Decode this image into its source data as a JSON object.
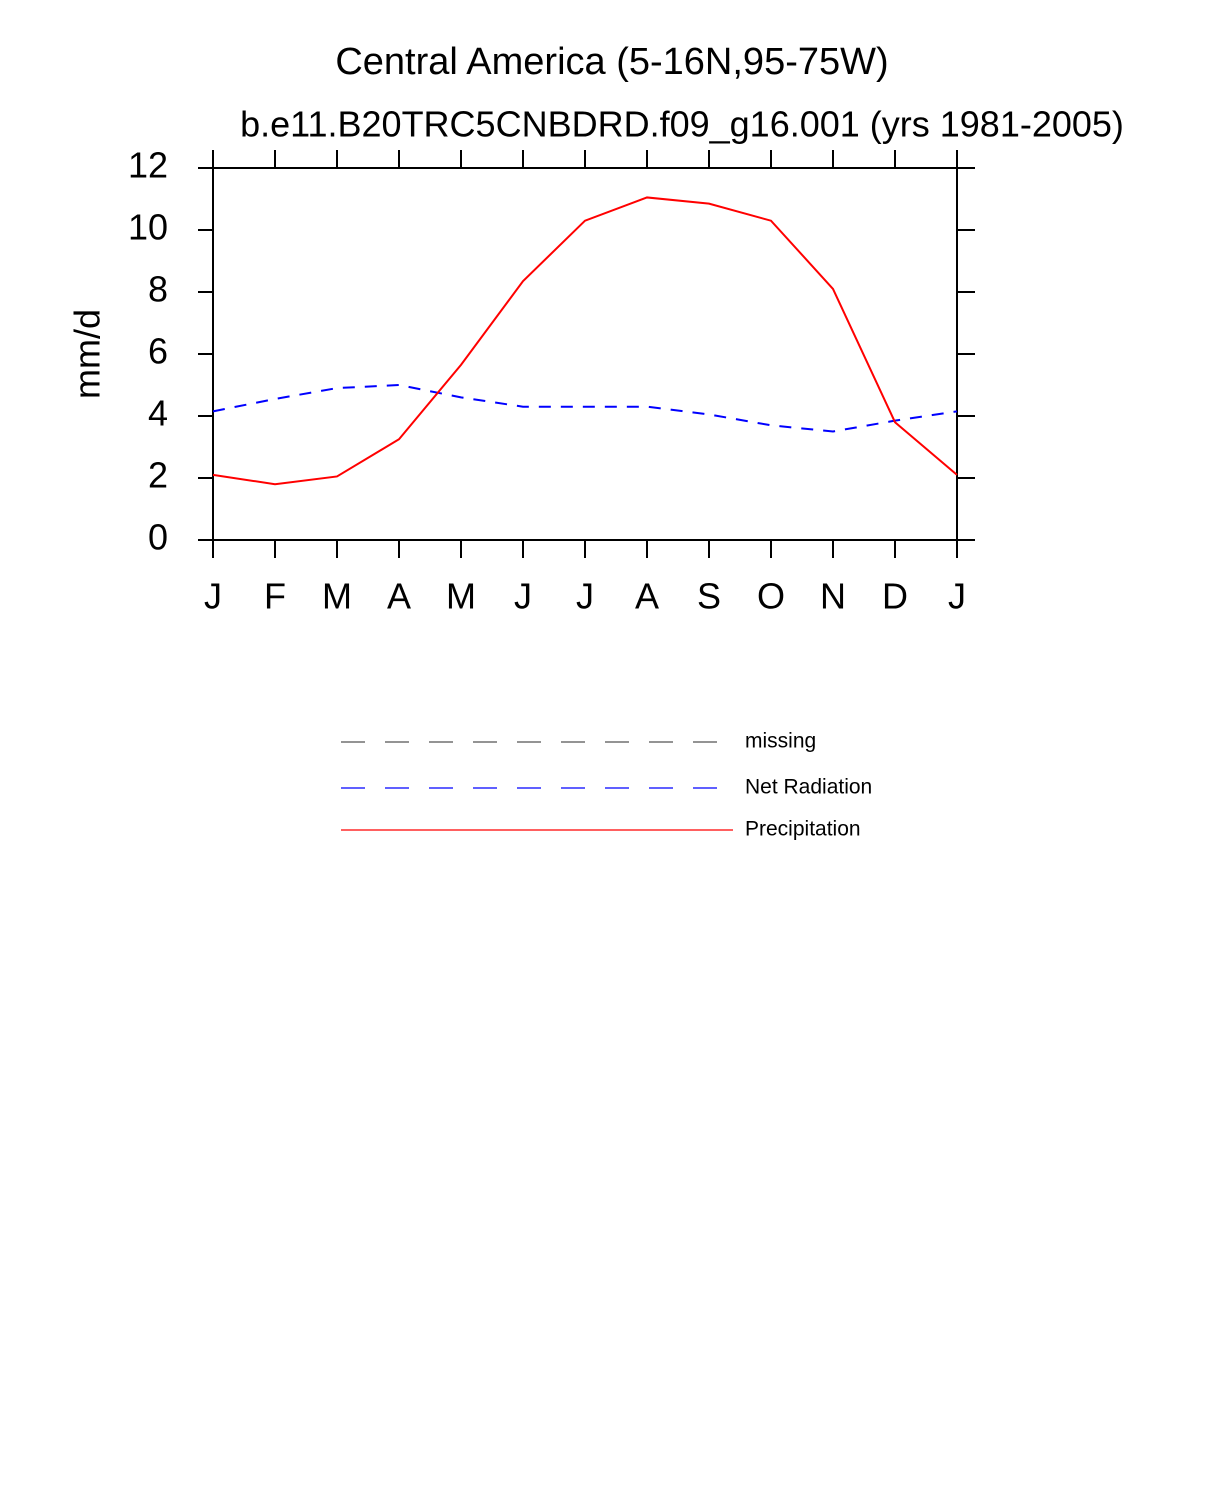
{
  "chart_data": {
    "type": "line",
    "title": "Central America (5-16N,95-75W)",
    "subtitle": "b.e11.B20TRC5CNBDRD.f09_g16.001 (yrs 1981-2005)",
    "y_label": "mm/d",
    "categories": [
      "J",
      "F",
      "M",
      "A",
      "M",
      "J",
      "J",
      "A",
      "S",
      "O",
      "N",
      "D",
      "J"
    ],
    "ylim": [
      0,
      12
    ],
    "yticks": [
      0,
      2,
      4,
      6,
      8,
      10,
      12
    ],
    "series": [
      {
        "name": "missing",
        "color": "#555555",
        "dashed": true,
        "values": [
          null,
          null,
          null,
          null,
          null,
          null,
          null,
          null,
          null,
          null,
          null,
          null,
          null
        ]
      },
      {
        "name": "Net Radiation",
        "color": "#0000ff",
        "dashed": true,
        "values": [
          4.15,
          4.55,
          4.9,
          5.0,
          4.6,
          4.3,
          4.3,
          4.3,
          4.05,
          3.7,
          3.5,
          3.85,
          4.15
        ]
      },
      {
        "name": "Precipitation",
        "color": "#ff0000",
        "dashed": false,
        "values": [
          2.1,
          1.8,
          2.05,
          3.25,
          5.65,
          8.35,
          10.3,
          11.05,
          10.85,
          10.3,
          8.1,
          3.8,
          2.1
        ]
      }
    ]
  }
}
